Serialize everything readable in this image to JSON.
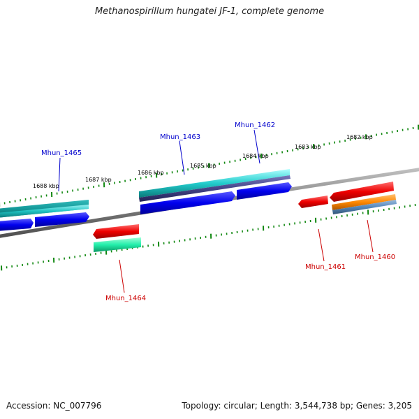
{
  "title": "Methanospirillum hungatei JF-1, complete genome",
  "footer": {
    "accession": "Accession: NC_007796",
    "summary": "Topology: circular; Length: 3,544,738 bp; Genes: 3,205"
  },
  "ruler_labels": [
    "1688 kbp",
    "1687 kbp",
    "1686 kbp",
    "1685 kbp",
    "1684 kbp",
    "1683 kbp",
    "1682 kbp"
  ],
  "gene_labels": {
    "forward": [
      "Mhun_1465",
      "Mhun_1463",
      "Mhun_1462"
    ],
    "reverse": [
      "Mhun_1464",
      "Mhun_1461",
      "Mhun_1460"
    ]
  },
  "colors": {
    "forward_label": "#0000cc",
    "reverse_label": "#cc0000",
    "cds_forward": "#0000ee",
    "cds_reverse": "#ee0000",
    "gene_forward": "#22cccc",
    "gene_reverse": "#22eeaa",
    "backbone": "#808080",
    "ticks": "#118811",
    "orange_feature": "#ff8800",
    "steel_feature": "#5588bb",
    "slate_feature": "#444488"
  }
}
